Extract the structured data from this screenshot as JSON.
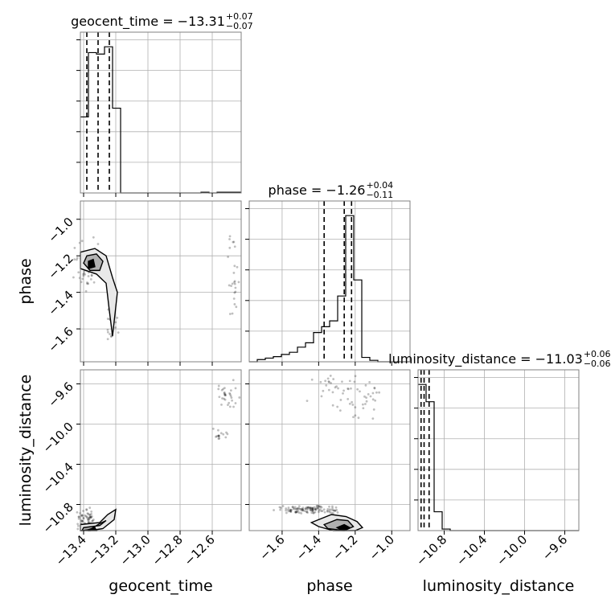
{
  "chart_data": {
    "type": "corner",
    "parameters": [
      "geocent_time",
      "phase",
      "luminosity_distance"
    ],
    "titles": [
      {
        "text": "geocent_time = −13.31",
        "plus": "+0.07",
        "minus": "−0.07"
      },
      {
        "text": "phase = −1.26",
        "plus": "+0.04",
        "minus": "−0.11"
      },
      {
        "text": "luminosity_distance = −11.03",
        "plus": "+0.06",
        "minus": "−0.06"
      }
    ],
    "ranges": {
      "geocent_time": [
        -13.42,
        -12.42
      ],
      "phase": [
        -1.78,
        -0.9
      ],
      "luminosity_distance": [
        -11.06,
        -9.46
      ]
    },
    "ticks": {
      "geocent_time": [
        -13.4,
        -13.2,
        -13.0,
        -12.8,
        -12.6
      ],
      "geocent_time_labels": [
        "−13.4",
        "−13.2",
        "−13.0",
        "−12.8",
        "−12.6"
      ],
      "phase": [
        -1.6,
        -1.4,
        -1.2,
        -1.0
      ],
      "phase_labels": [
        "−1.6",
        "−1.4",
        "−1.2",
        "−1.0"
      ],
      "luminosity_distance": [
        -10.8,
        -10.4,
        -10.0,
        -9.6
      ],
      "luminosity_distance_labels": [
        "−10.8",
        "−10.4",
        "−10.0",
        "−9.6"
      ]
    },
    "quantiles": {
      "geocent_time": [
        -13.38,
        -13.31,
        -13.24
      ],
      "phase": [
        -1.37,
        -1.26,
        -1.22
      ],
      "luminosity_distance": [
        -11.03,
        -11.0,
        -10.95
      ]
    },
    "histograms": {
      "geocent_time": {
        "edges": [
          -13.42,
          -13.37,
          -13.32,
          -13.27,
          -13.22,
          -13.17,
          -13.12,
          -13.07,
          -13.02,
          -12.97,
          -12.92,
          -12.87,
          -12.82,
          -12.77,
          -12.72,
          -12.67,
          -12.62,
          -12.57,
          -12.52,
          -12.47,
          -12.42
        ],
        "counts": [
          0.52,
          0.96,
          0.95,
          1.0,
          0.58,
          0,
          0,
          0,
          0,
          0,
          0,
          0,
          0,
          0,
          0,
          0.005,
          0,
          0.005,
          0.005,
          0.005
        ]
      },
      "phase": {
        "edges": [
          -1.78,
          -1.736,
          -1.692,
          -1.648,
          -1.604,
          -1.56,
          -1.516,
          -1.472,
          -1.428,
          -1.384,
          -1.34,
          -1.296,
          -1.252,
          -1.208,
          -1.164,
          -1.12,
          -1.076,
          -1.032,
          -0.988,
          -0.944,
          -0.9
        ],
        "counts": [
          0,
          0.015,
          0.025,
          0.035,
          0.05,
          0.065,
          0.1,
          0.13,
          0.2,
          0.24,
          0.28,
          0.45,
          1.0,
          0.56,
          0.03,
          0.01,
          0,
          0,
          0,
          0
        ]
      },
      "luminosity_distance": {
        "edges": [
          -11.06,
          -10.98,
          -10.9,
          -10.82,
          -10.74,
          -10.66,
          -10.58,
          -10.5,
          -10.42,
          -10.34,
          -10.26,
          -10.18,
          -10.1,
          -10.02,
          -9.94,
          -9.86,
          -9.78,
          -9.7,
          -9.62,
          -9.54,
          -9.46
        ],
        "counts": [
          0.93,
          0.82,
          0.12,
          0.01,
          0,
          0,
          0,
          0,
          0,
          0,
          0,
          0,
          0,
          0,
          0,
          0,
          0,
          0,
          0,
          0
        ]
      }
    },
    "grid": true
  }
}
